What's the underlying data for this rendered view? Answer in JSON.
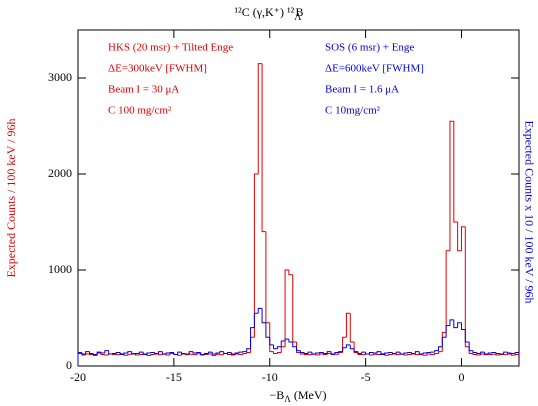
{
  "chart_data": {
    "type": "histogram",
    "title_parts": [
      "¹²C (γ,K⁺) ¹²",
      "Λ",
      "B"
    ],
    "x_label_parts": [
      "−B",
      "Λ",
      " (MeV)"
    ],
    "y_label": "Expected Counts / 100 keV / 96h",
    "y2_label": "Expected Counts x 10 / 100 keV / 96h",
    "xlim": [
      -20,
      3
    ],
    "xticks": [
      -20,
      -15,
      -10,
      -5,
      0
    ],
    "ylim": [
      0,
      3500
    ],
    "yticks": [
      0,
      1000,
      2000,
      3000
    ],
    "bins": [
      -20,
      -19.8,
      -19.6,
      -19.4,
      -19.2,
      -19,
      -18.8,
      -18.6,
      -18.4,
      -18.2,
      -18,
      -17.8,
      -17.6,
      -17.4,
      -17.2,
      -17,
      -16.8,
      -16.6,
      -16.4,
      -16.2,
      -16,
      -15.8,
      -15.6,
      -15.4,
      -15.2,
      -15,
      -14.8,
      -14.6,
      -14.4,
      -14.2,
      -14,
      -13.8,
      -13.6,
      -13.4,
      -13.2,
      -13,
      -12.8,
      -12.6,
      -12.4,
      -12.2,
      -12,
      -11.8,
      -11.6,
      -11.4,
      -11.2,
      -11,
      -10.8,
      -10.6,
      -10.4,
      -10.2,
      -10,
      -9.8,
      -9.6,
      -9.4,
      -9.2,
      -9,
      -8.8,
      -8.6,
      -8.4,
      -8.2,
      -8,
      -7.8,
      -7.6,
      -7.4,
      -7.2,
      -7,
      -6.8,
      -6.6,
      -6.4,
      -6.2,
      -6,
      -5.8,
      -5.6,
      -5.4,
      -5.2,
      -5,
      -4.8,
      -4.6,
      -4.4,
      -4.2,
      -4,
      -3.8,
      -3.6,
      -3.4,
      -3.2,
      -3,
      -2.8,
      -2.6,
      -2.4,
      -2.2,
      -2,
      -1.8,
      -1.6,
      -1.4,
      -1.2,
      -1,
      -0.8,
      -0.6,
      -0.4,
      -0.2,
      0,
      0.2,
      0.4,
      0.6,
      0.8,
      1,
      1.2,
      1.4,
      1.6,
      1.8,
      2,
      2.2,
      2.4,
      2.6,
      2.8,
      3
    ],
    "series": [
      {
        "color": "#e00000",
        "values": [
          130,
          115,
          125,
          120,
          110,
          135,
          120,
          115,
          125,
          120,
          118,
          128,
          112,
          122,
          130,
          115,
          120,
          125,
          110,
          120,
          125,
          118,
          122,
          115,
          130,
          120,
          112,
          125,
          118,
          122,
          120,
          128,
          115,
          120,
          125,
          110,
          122,
          118,
          130,
          120,
          115,
          125,
          120,
          130,
          140,
          300,
          2000,
          3150,
          1400,
          450,
          150,
          130,
          140,
          200,
          1000,
          950,
          250,
          140,
          125,
          120,
          118,
          122,
          115,
          125,
          120,
          130,
          118,
          122,
          140,
          300,
          550,
          250,
          140,
          120,
          118,
          125,
          115,
          122,
          120,
          128,
          112,
          120,
          125,
          118,
          122,
          115,
          120,
          125,
          118,
          120,
          112,
          125,
          120,
          130,
          150,
          350,
          1200,
          2550,
          1500,
          1200,
          1450,
          200,
          130,
          120,
          115,
          125,
          118,
          120,
          122,
          115,
          120,
          118,
          125,
          112,
          120
        ]
      },
      {
        "color": "#0000e0",
        "values": [
          140,
          125,
          150,
          130,
          120,
          145,
          135,
          160,
          125,
          130,
          140,
          120,
          135,
          150,
          125,
          130,
          145,
          120,
          135,
          140,
          130,
          150,
          125,
          135,
          140,
          120,
          145,
          130,
          125,
          150,
          135,
          140,
          120,
          130,
          145,
          125,
          135,
          150,
          130,
          140,
          125,
          135,
          145,
          150,
          180,
          400,
          550,
          600,
          450,
          300,
          220,
          180,
          200,
          260,
          280,
          250,
          200,
          160,
          140,
          130,
          145,
          125,
          135,
          140,
          130,
          150,
          125,
          140,
          150,
          190,
          220,
          180,
          150,
          130,
          145,
          125,
          140,
          135,
          150,
          120,
          135,
          140,
          130,
          145,
          125,
          135,
          140,
          130,
          150,
          125,
          135,
          140,
          145,
          160,
          200,
          300,
          420,
          480,
          400,
          450,
          380,
          250,
          160,
          140,
          130,
          145,
          125,
          135,
          140,
          130,
          125,
          145,
          135,
          130,
          140
        ]
      }
    ],
    "annotations": [
      {
        "color": "#e00000",
        "lines": [
          "HKS (20 msr) + Tilted Enge",
          "ΔE=300keV [FWHM]",
          "Beam I = 30 μA",
          "C 100 mg/cm²"
        ]
      },
      {
        "color": "#0000e0",
        "lines": [
          "SOS (6 msr) + Enge",
          "ΔE=600keV [FWHM]",
          "Beam I = 1.6 μA",
          "C 10mg/cm²"
        ]
      }
    ]
  }
}
